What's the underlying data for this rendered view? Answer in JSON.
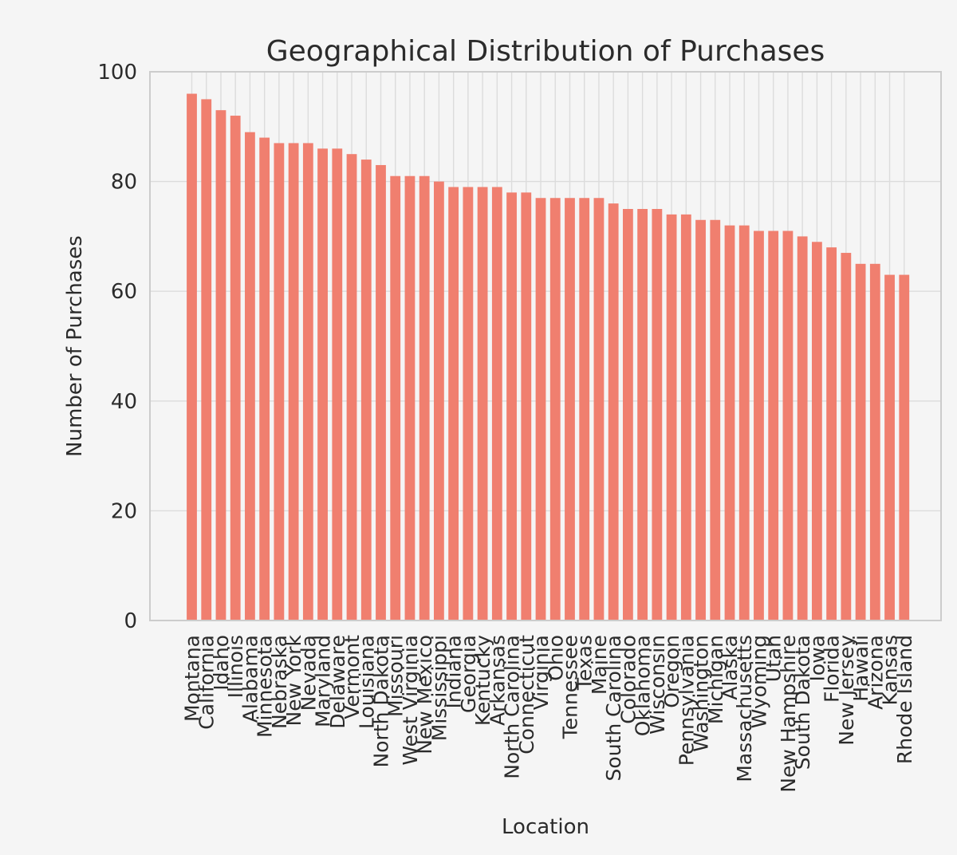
{
  "chart_data": {
    "type": "bar",
    "title": "Geographical Distribution of Purchases",
    "xlabel": "Location",
    "ylabel": "Number of Purchases",
    "ylim": [
      0,
      100
    ],
    "yticks": [
      0,
      20,
      40,
      60,
      80,
      100
    ],
    "grid": true,
    "bar_color": "#f07f6f",
    "categories": [
      "Montana",
      "California",
      "Idaho",
      "Illinois",
      "Alabama",
      "Minnesota",
      "Nebraska",
      "New York",
      "Nevada",
      "Maryland",
      "Delaware",
      "Vermont",
      "Louisiana",
      "North Dakota",
      "Missouri",
      "West Virginia",
      "New Mexico",
      "Mississippi",
      "Indiana",
      "Georgia",
      "Kentucky",
      "Arkansas",
      "North Carolina",
      "Connecticut",
      "Virginia",
      "Ohio",
      "Tennessee",
      "Texas",
      "Maine",
      "South Carolina",
      "Colorado",
      "Oklahoma",
      "Wisconsin",
      "Oregon",
      "Pennsylvania",
      "Washington",
      "Michigan",
      "Alaska",
      "Massachusetts",
      "Wyoming",
      "Utah",
      "New Hampshire",
      "South Dakota",
      "Iowa",
      "Florida",
      "New Jersey",
      "Hawaii",
      "Arizona",
      "Kansas",
      "Rhode Island"
    ],
    "values": [
      96,
      95,
      93,
      92,
      89,
      88,
      87,
      87,
      87,
      86,
      86,
      85,
      84,
      83,
      81,
      81,
      81,
      80,
      79,
      79,
      79,
      79,
      78,
      78,
      77,
      77,
      77,
      77,
      77,
      76,
      75,
      75,
      75,
      74,
      74,
      73,
      73,
      72,
      72,
      71,
      71,
      71,
      70,
      69,
      68,
      67,
      65,
      65,
      63,
      63
    ]
  }
}
